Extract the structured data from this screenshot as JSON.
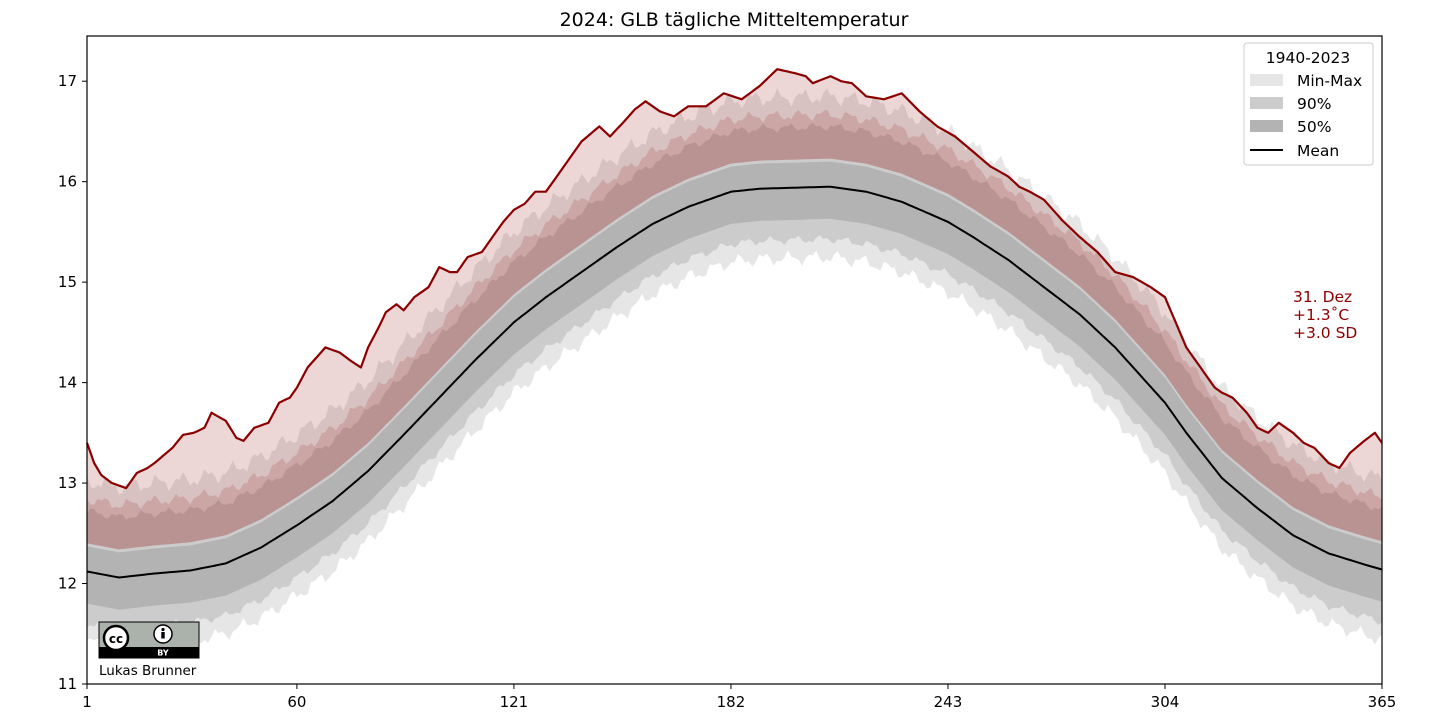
{
  "chart_data": {
    "type": "area",
    "title": "2024: GLB tägliche Mitteltemperatur",
    "xlabel": "",
    "ylabel": "",
    "xlim": [
      1,
      365
    ],
    "ylim": [
      11,
      17.45
    ],
    "xticks": [
      1,
      60,
      121,
      182,
      243,
      304,
      365
    ],
    "yticks": [
      11,
      12,
      13,
      14,
      15,
      16,
      17
    ],
    "grid": false,
    "legend": {
      "title": "1940-2023",
      "placement": "top-right",
      "entries": [
        "Min-Max",
        "90%",
        "50%",
        "Mean"
      ]
    },
    "climatology_mean": {
      "name": "Mean",
      "x": [
        1,
        10,
        20,
        30,
        40,
        50,
        60,
        70,
        80,
        90,
        100,
        110,
        121,
        130,
        140,
        150,
        160,
        170,
        182,
        190,
        200,
        210,
        220,
        230,
        243,
        250,
        260,
        270,
        280,
        290,
        304,
        310,
        320,
        330,
        340,
        350,
        360,
        365
      ],
      "y": [
        12.12,
        12.06,
        12.1,
        12.13,
        12.2,
        12.36,
        12.58,
        12.82,
        13.12,
        13.48,
        13.85,
        14.22,
        14.6,
        14.85,
        15.1,
        15.35,
        15.58,
        15.75,
        15.9,
        15.93,
        15.94,
        15.95,
        15.9,
        15.8,
        15.6,
        15.45,
        15.22,
        14.95,
        14.68,
        14.35,
        13.8,
        13.5,
        13.05,
        12.75,
        12.48,
        12.3,
        12.19,
        12.14
      ]
    },
    "offsets": {
      "p50_lower": -0.32,
      "p50_upper": 0.25,
      "p90_lower": -0.52,
      "p90_upper": 0.6,
      "min": -0.7,
      "max": 0.9,
      "band_2024_lower": 0.28,
      "band_2024_mid": 0.72
    },
    "series": [
      {
        "name": "",
        "x": [
          1,
          3,
          5,
          8,
          12,
          15,
          18,
          20,
          25,
          28,
          31,
          34,
          36,
          40,
          43,
          45,
          48,
          52,
          55,
          58,
          60,
          63,
          68,
          72,
          75,
          78,
          80,
          83,
          85,
          88,
          90,
          93,
          97,
          100,
          103,
          105,
          108,
          112,
          115,
          118,
          121,
          124,
          127,
          130,
          135,
          140,
          145,
          148,
          152,
          155,
          158,
          162,
          166,
          170,
          175,
          180,
          185,
          190,
          195,
          200,
          203,
          205,
          210,
          213,
          216,
          220,
          225,
          230,
          235,
          240,
          245,
          250,
          255,
          260,
          263,
          266,
          270,
          275,
          280,
          285,
          290,
          295,
          300,
          304,
          307,
          310,
          315,
          318,
          320,
          323,
          327,
          330,
          333,
          336,
          340,
          343,
          346,
          350,
          353,
          356,
          360,
          363,
          365
        ],
        "y": [
          13.4,
          13.2,
          13.08,
          13.0,
          12.95,
          13.1,
          13.15,
          13.2,
          13.35,
          13.48,
          13.5,
          13.55,
          13.7,
          13.62,
          13.45,
          13.42,
          13.55,
          13.6,
          13.8,
          13.85,
          13.95,
          14.15,
          14.35,
          14.3,
          14.22,
          14.15,
          14.35,
          14.55,
          14.7,
          14.78,
          14.72,
          14.85,
          14.95,
          15.15,
          15.1,
          15.1,
          15.25,
          15.3,
          15.45,
          15.6,
          15.72,
          15.78,
          15.9,
          15.9,
          16.15,
          16.4,
          16.55,
          16.45,
          16.6,
          16.72,
          16.8,
          16.7,
          16.65,
          16.75,
          16.75,
          16.88,
          16.82,
          16.95,
          17.12,
          17.08,
          17.05,
          16.98,
          17.05,
          17.0,
          16.98,
          16.85,
          16.82,
          16.88,
          16.7,
          16.55,
          16.45,
          16.3,
          16.15,
          16.05,
          15.95,
          15.9,
          15.82,
          15.62,
          15.45,
          15.3,
          15.1,
          15.05,
          14.95,
          14.85,
          14.6,
          14.35,
          14.1,
          13.95,
          13.9,
          13.85,
          13.7,
          13.55,
          13.5,
          13.6,
          13.5,
          13.4,
          13.35,
          13.2,
          13.15,
          13.3,
          13.42,
          13.5,
          13.4
        ]
      }
    ],
    "colors": {
      "min_max": "#e6e6e6",
      "p90": "#cccccc",
      "p50": "#b3b3b3",
      "mean": "#000000",
      "line_2024": "#8b0000",
      "band_2024": "#8b0000"
    },
    "annotation": {
      "date": "31. Dez",
      "anomaly": "+1.3$^\\circ$C",
      "anomaly_display": "+1.3˚C",
      "sd": "+3.0 SD"
    },
    "credit": {
      "license": "BY",
      "author": "Lukas Brunner"
    }
  }
}
